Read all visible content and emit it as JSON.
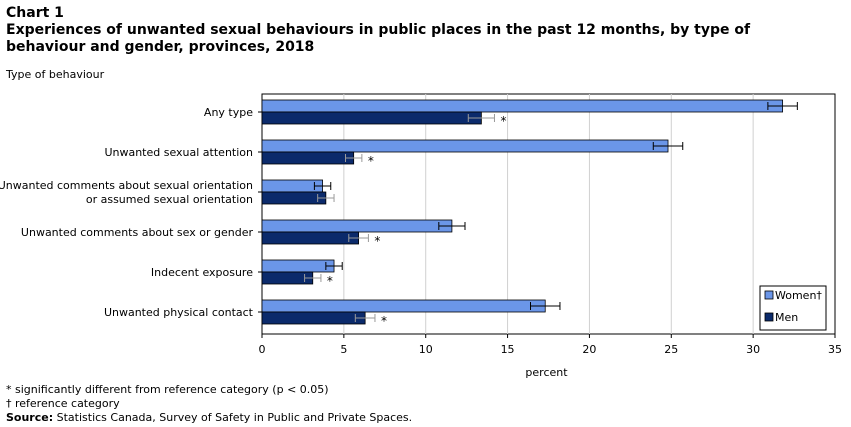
{
  "header": {
    "label": "Chart 1",
    "title": "Experiences of unwanted sexual behaviours in public places in the past 12 months, by type of behaviour and gender, provinces, 2018"
  },
  "chart_data": {
    "type": "bar",
    "orientation": "horizontal",
    "ylabel": "Type of behaviour",
    "xlabel": "percent",
    "xlim": [
      0,
      35
    ],
    "xticks": [
      0,
      5,
      10,
      15,
      20,
      25,
      30,
      35
    ],
    "grid": true,
    "legend_position": "bottom-right",
    "categories": [
      [
        "Any type"
      ],
      [
        "Unwanted sexual attention"
      ],
      [
        "Unwanted comments about sexual orientation",
        "or assumed sexual orientation"
      ],
      [
        "Unwanted comments about sex or gender"
      ],
      [
        "Indecent exposure"
      ],
      [
        "Unwanted physical contact"
      ]
    ],
    "series": [
      {
        "name": "Women†",
        "color": "#6b96e8",
        "values": [
          31.8,
          24.8,
          3.7,
          11.6,
          4.4,
          17.3
        ],
        "error_low": [
          30.9,
          23.9,
          3.2,
          10.8,
          3.9,
          16.4
        ],
        "error_high": [
          32.7,
          25.7,
          4.2,
          12.4,
          4.9,
          18.2
        ],
        "significant": [
          false,
          false,
          false,
          false,
          false,
          false
        ]
      },
      {
        "name": "Men",
        "color": "#0b2a6b",
        "values": [
          13.4,
          5.6,
          3.9,
          5.9,
          3.1,
          6.3
        ],
        "error_low": [
          12.6,
          5.1,
          3.4,
          5.3,
          2.6,
          5.7
        ],
        "error_high": [
          14.2,
          6.1,
          4.4,
          6.5,
          3.6,
          6.9
        ],
        "significant": [
          true,
          true,
          false,
          true,
          true,
          true
        ]
      }
    ],
    "significance_marker": "*"
  },
  "notes": {
    "significance": "* significantly different from reference category (p < 0.05)",
    "reference": "† reference category",
    "source_label": "Source:",
    "source_text": " Statistics Canada, Survey of Safety in Public and Private Spaces."
  }
}
